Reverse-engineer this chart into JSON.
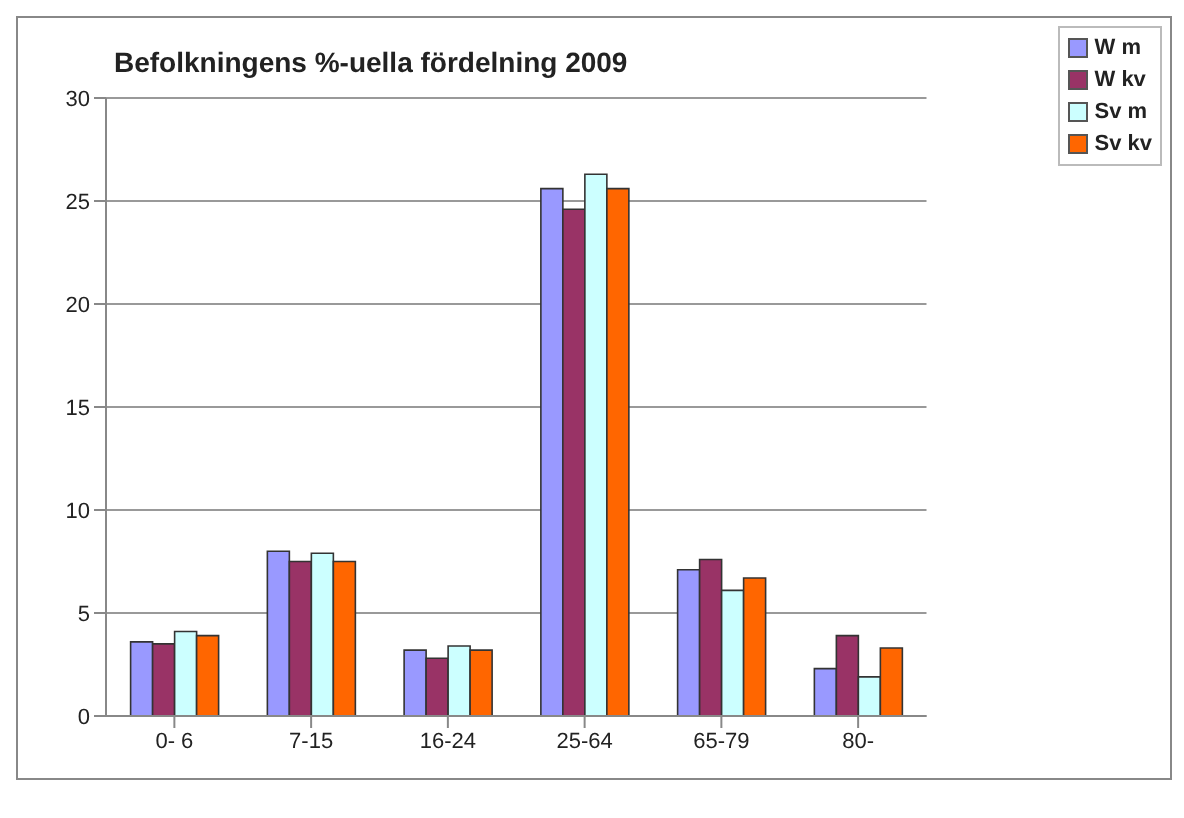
{
  "chart_data": {
    "type": "bar",
    "title": "Befolkningens %-uella fördelning 2009",
    "categories": [
      "0- 6",
      "7-15",
      "16-24",
      "25-64",
      "65-79",
      "80-"
    ],
    "series": [
      {
        "name": "W m",
        "color": "#9999ff",
        "values": [
          3.6,
          8.0,
          3.2,
          25.6,
          7.1,
          2.3
        ]
      },
      {
        "name": "W kv",
        "color": "#993366",
        "values": [
          3.5,
          7.5,
          2.8,
          24.6,
          7.6,
          3.9
        ]
      },
      {
        "name": "Sv m",
        "color": "#ccffff",
        "values": [
          4.1,
          7.9,
          3.4,
          26.3,
          6.1,
          1.9
        ]
      },
      {
        "name": "Sv kv",
        "color": "#ff6600",
        "values": [
          3.9,
          7.5,
          3.2,
          25.6,
          6.7,
          3.3
        ]
      }
    ],
    "ylim": [
      0,
      30
    ],
    "yticks": [
      0,
      5,
      10,
      15,
      20,
      25,
      30
    ],
    "grid": "y",
    "legend": "top right"
  }
}
